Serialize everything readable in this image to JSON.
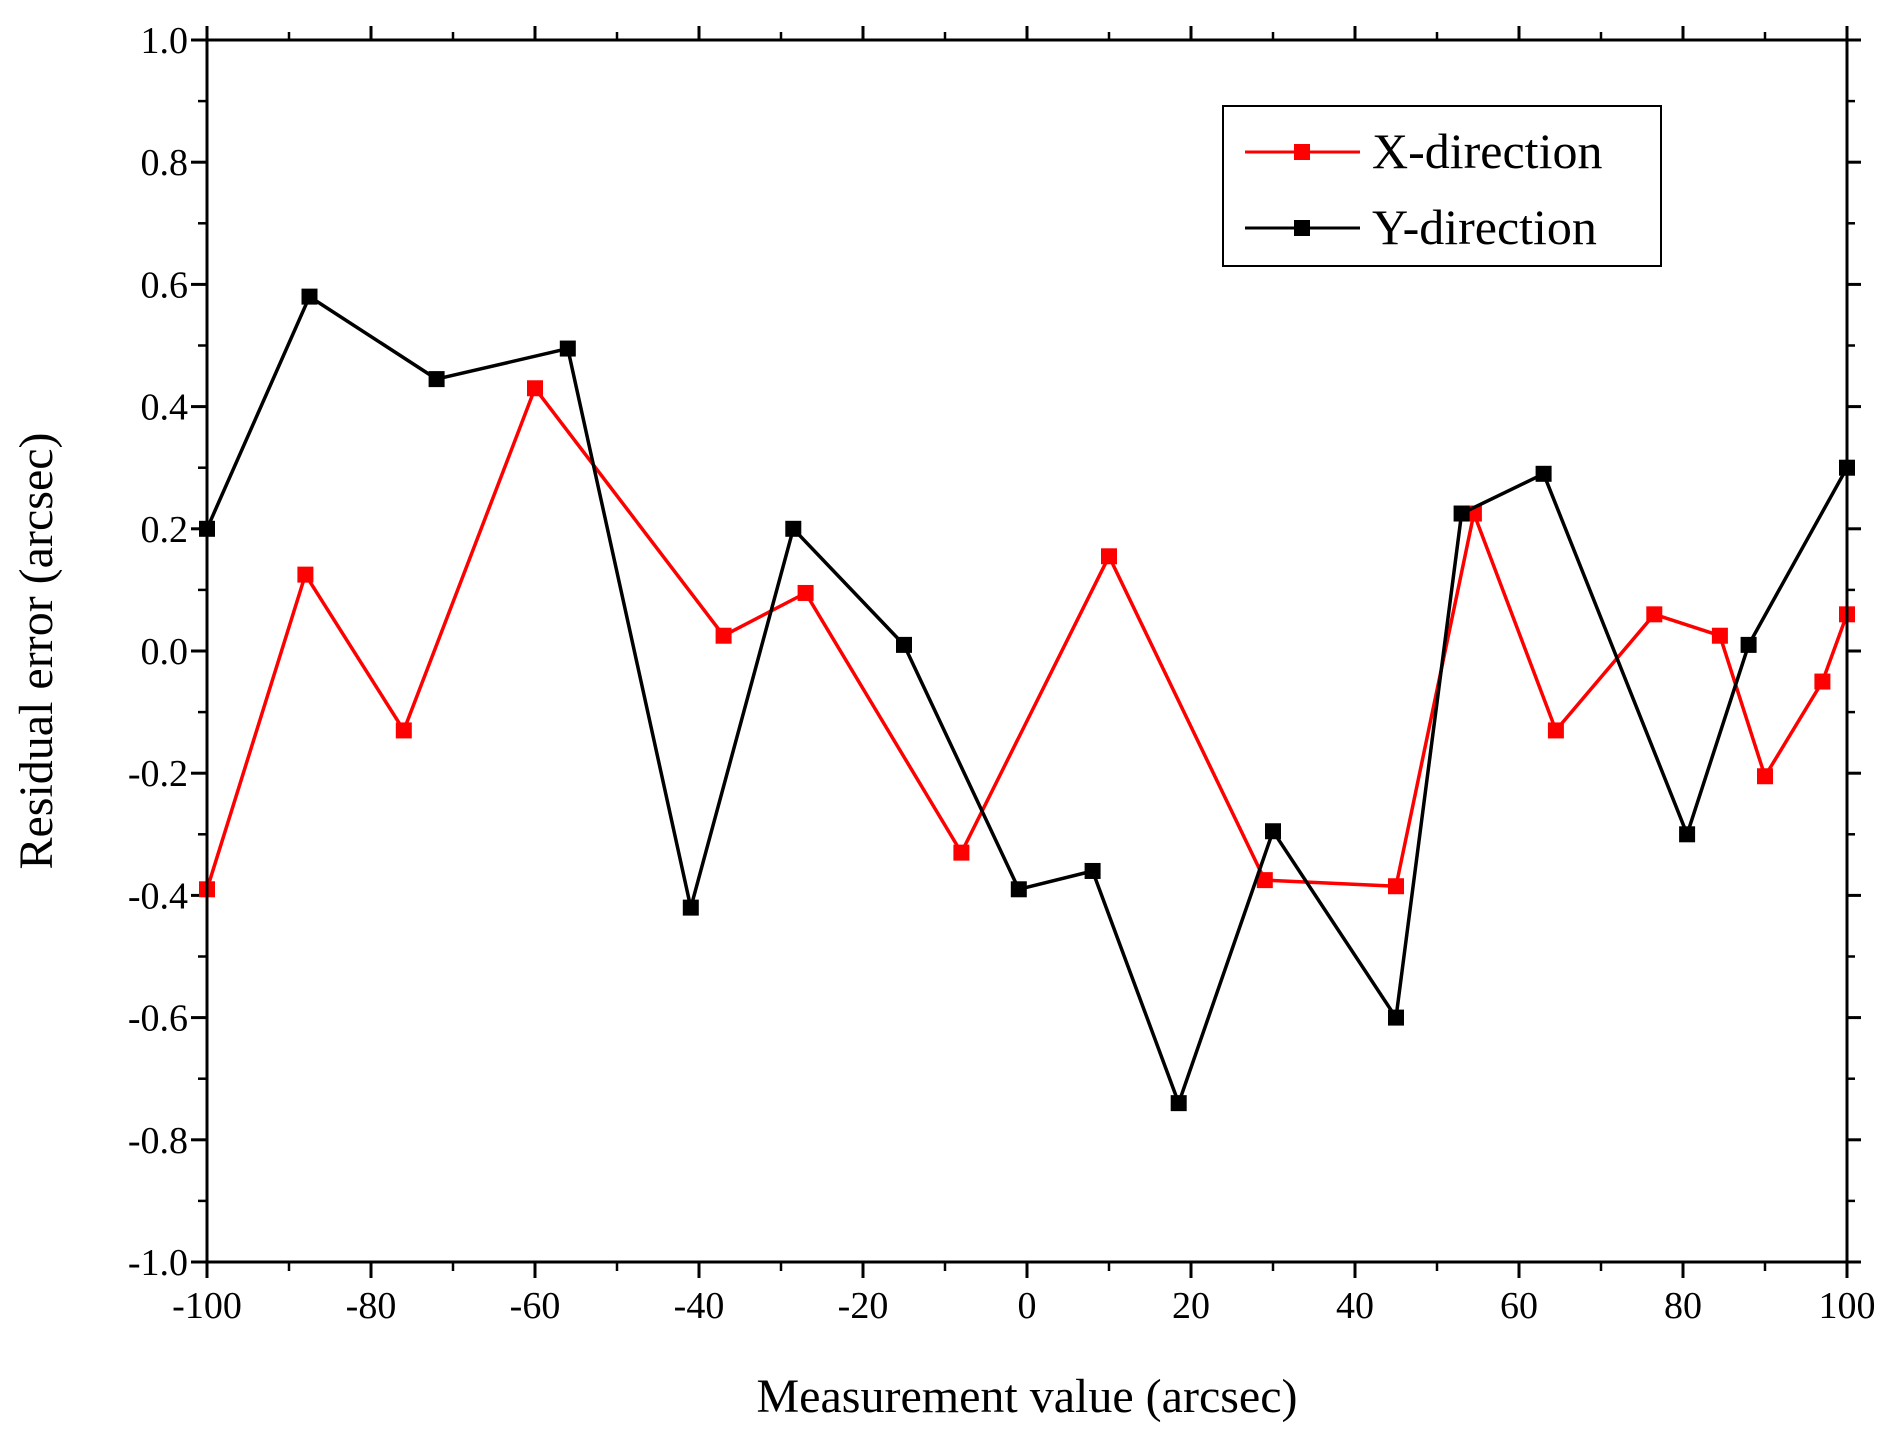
{
  "chart_data": {
    "type": "line",
    "title": "",
    "xlabel": "Measurement value (arcsec)",
    "ylabel": "Residual error (arcsec)",
    "xlim": [
      -100,
      100
    ],
    "ylim": [
      -1.0,
      1.0
    ],
    "x_ticks": [
      -100,
      -80,
      -60,
      -40,
      -20,
      0,
      20,
      40,
      60,
      80,
      100
    ],
    "y_ticks": [
      -1.0,
      -0.8,
      -0.6,
      -0.4,
      -0.2,
      0.0,
      0.2,
      0.4,
      0.6,
      0.8,
      1.0
    ],
    "x_tick_labels": [
      "-100",
      "-80",
      "-60",
      "-40",
      "-20",
      "0",
      "20",
      "40",
      "60",
      "80",
      "100"
    ],
    "y_tick_labels": [
      "-1.0",
      "-0.8",
      "-0.6",
      "-0.4",
      "-0.2",
      "0.0",
      "0.2",
      "0.4",
      "0.6",
      "0.8",
      "1.0"
    ],
    "grid": false,
    "legend_position": "top-right",
    "series": [
      {
        "name": "X-direction",
        "color": "#ff0000",
        "marker": "square",
        "x": [
          -100,
          -88,
          -76,
          -60,
          -37,
          -27,
          -8,
          10,
          29,
          45,
          54.5,
          64.5,
          76.5,
          84.5,
          90,
          97,
          100
        ],
        "y": [
          -0.39,
          0.125,
          -0.13,
          0.43,
          0.025,
          0.095,
          -0.33,
          0.155,
          -0.375,
          -0.385,
          0.225,
          -0.13,
          0.06,
          0.025,
          -0.205,
          -0.05,
          0.06
        ]
      },
      {
        "name": "Y-direction",
        "color": "#000000",
        "marker": "square",
        "x": [
          -100,
          -87.5,
          -72,
          -56,
          -41,
          -28.5,
          -15,
          -1,
          8,
          18.5,
          30,
          45,
          53,
          63,
          80.5,
          88,
          100
        ],
        "y": [
          0.2,
          0.58,
          0.445,
          0.495,
          -0.42,
          0.2,
          0.01,
          -0.39,
          -0.36,
          -0.74,
          -0.295,
          -0.6,
          0.225,
          0.29,
          -0.3,
          0.01,
          0.3
        ]
      }
    ]
  }
}
